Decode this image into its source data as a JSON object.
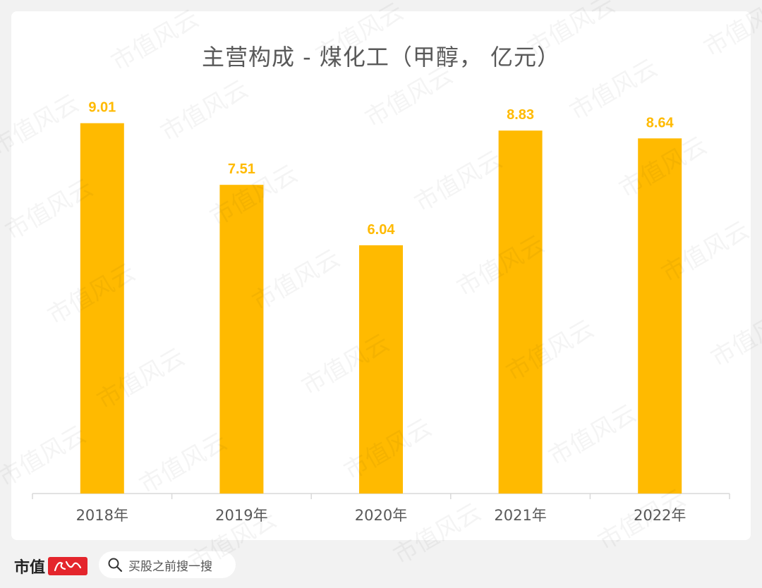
{
  "chart_data": {
    "type": "bar",
    "title": "主营构成 - 煤化工（甲醇， 亿元）",
    "categories": [
      "2018年",
      "2019年",
      "2020年",
      "2021年",
      "2022年"
    ],
    "values": [
      9.01,
      7.51,
      6.04,
      8.83,
      8.64
    ],
    "ylim": [
      0,
      12
    ],
    "grid": false,
    "bar_color": "#FFBA00",
    "label_color": "#FFBA00"
  },
  "footer": {
    "brand": "市值",
    "search_placeholder": "买股之前搜一搜"
  },
  "watermark": "市值风云"
}
